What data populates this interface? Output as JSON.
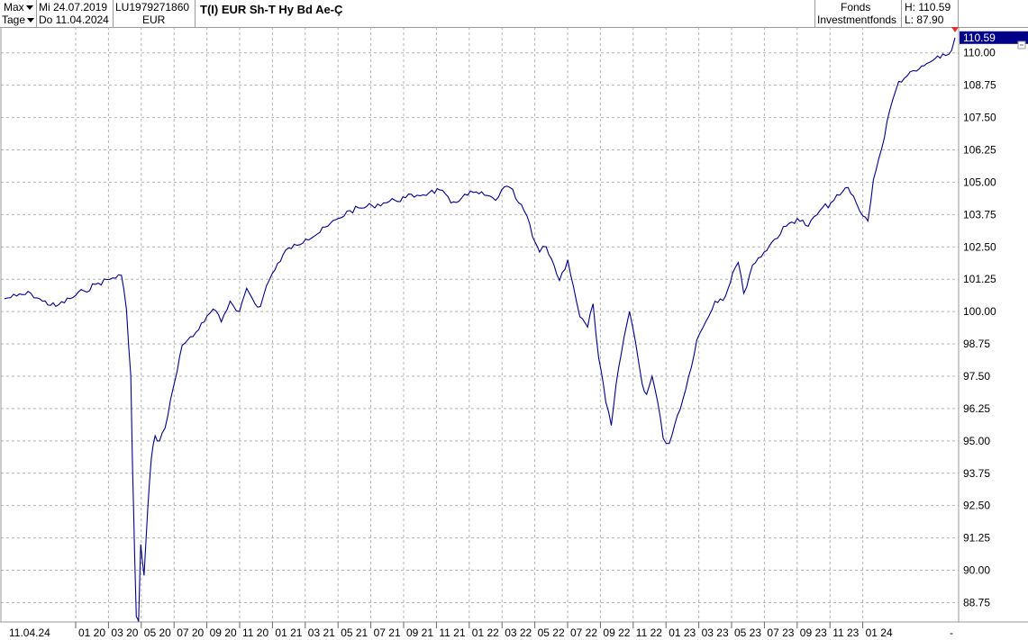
{
  "header": {
    "period_select": "Max",
    "interval_select": "Tage",
    "date_from": "Mi 24.07.2019",
    "date_to": "Do 11.04.2024",
    "isin": "LU1979271860",
    "currency": "EUR",
    "title": "T(I) EUR Sh-T Hy Bd Ae-Ç",
    "type_line1": "Fonds",
    "type_line2": "Investmentfonds",
    "high": "H: 110.59",
    "low": "L: 87.90"
  },
  "colors": {
    "line": "#00008b",
    "grid": "#b4b4b4",
    "last_price_bg": "#00008b",
    "last_marker": "#e03030"
  },
  "chart_data": {
    "type": "line",
    "title": "T(I) EUR Sh-T Hy Bd Ae-Ç",
    "ylim": [
      88.0,
      111.0
    ],
    "y_ticks": [
      "110.00",
      "108.75",
      "107.50",
      "106.25",
      "105.00",
      "103.75",
      "102.50",
      "101.25",
      "100.00",
      "98.75",
      "97.50",
      "96.25",
      "95.00",
      "93.75",
      "92.50",
      "91.25",
      "90.00",
      "88.75"
    ],
    "x_labels": [
      "11.04.24",
      "01 20",
      "03 20",
      "05 20",
      "07 20",
      "09 20",
      "11 20",
      "01 21",
      "03 21",
      "05 21",
      "07 21",
      "09 21",
      "11 21",
      "01 22",
      "03 22",
      "05 22",
      "07 22",
      "09 22",
      "11 22",
      "01 23",
      "03 23",
      "05 23",
      "07 23",
      "09 23",
      "11 23",
      "01 24",
      "-"
    ],
    "last_value": "110.59",
    "grid": true,
    "series": [
      {
        "x": [
          "2019-07-24",
          "2019-08-15",
          "2019-09-10",
          "2019-10-01",
          "2019-10-25",
          "2019-11-20",
          "2019-12-15",
          "2020-01-10",
          "2020-02-05",
          "2020-02-21",
          "2020-03-01",
          "2020-03-09",
          "2020-03-12",
          "2020-03-16",
          "2020-03-19",
          "2020-03-23",
          "2020-03-27",
          "2020-04-02",
          "2020-04-09",
          "2020-04-15",
          "2020-04-22",
          "2020-04-30",
          "2020-05-10",
          "2020-05-20",
          "2020-06-01",
          "2020-06-10",
          "2020-06-20",
          "2020-07-05",
          "2020-07-20",
          "2020-08-05",
          "2020-08-20",
          "2020-09-05",
          "2020-09-22",
          "2020-10-05",
          "2020-10-20",
          "2020-10-30",
          "2020-11-10",
          "2020-11-25",
          "2020-12-10",
          "2020-12-30",
          "2021-01-20",
          "2021-02-10",
          "2021-03-01",
          "2021-03-20",
          "2021-04-10",
          "2021-05-01",
          "2021-05-20",
          "2021-06-10",
          "2021-07-01",
          "2021-07-20",
          "2021-08-10",
          "2021-09-01",
          "2021-09-20",
          "2021-10-10",
          "2021-10-30",
          "2021-11-20",
          "2021-12-10",
          "2021-12-30",
          "2022-01-10",
          "2022-01-25",
          "2022-02-10",
          "2022-02-25",
          "2022-03-07",
          "2022-03-20",
          "2022-04-01",
          "2022-04-15",
          "2022-04-25",
          "2022-05-10",
          "2022-05-20",
          "2022-06-01",
          "2022-06-15",
          "2022-06-25",
          "2022-07-05",
          "2022-07-18",
          "2022-07-28",
          "2022-08-10",
          "2022-08-20",
          "2022-08-30",
          "2022-09-10",
          "2022-09-22",
          "2022-09-30",
          "2022-10-10",
          "2022-10-20",
          "2022-10-30",
          "2022-11-10",
          "2022-11-25",
          "2022-12-10",
          "2022-12-30",
          "2023-01-15",
          "2023-02-01",
          "2023-02-20",
          "2023-03-05",
          "2023-03-15",
          "2023-03-25",
          "2023-04-10",
          "2023-05-01",
          "2023-05-20",
          "2023-06-10",
          "2023-06-30",
          "2023-07-20",
          "2023-08-10",
          "2023-08-30",
          "2023-09-15",
          "2023-09-30",
          "2023-10-15",
          "2023-10-27",
          "2023-11-05",
          "2023-11-15",
          "2023-11-30",
          "2023-12-15",
          "2023-12-31",
          "2024-01-15",
          "2024-02-01",
          "2024-02-15",
          "2024-03-01",
          "2024-03-15",
          "2024-03-25",
          "2024-04-05",
          "2024-04-11"
        ],
        "y": [
          100.5,
          100.6,
          100.7,
          100.4,
          100.2,
          100.5,
          100.8,
          101.1,
          101.3,
          101.4,
          100.1,
          97.5,
          94.0,
          90.5,
          88.2,
          88.0,
          91.0,
          89.8,
          92.5,
          94.3,
          95.2,
          95.0,
          95.5,
          96.6,
          97.7,
          98.7,
          98.9,
          99.2,
          99.6,
          100.1,
          99.6,
          100.4,
          100.0,
          100.9,
          100.3,
          100.2,
          101.0,
          101.6,
          102.2,
          102.6,
          102.8,
          103.0,
          103.3,
          103.6,
          103.9,
          104.0,
          104.1,
          104.2,
          104.3,
          104.4,
          104.5,
          104.6,
          104.7,
          104.2,
          104.4,
          104.6,
          104.5,
          104.3,
          104.7,
          104.8,
          104.2,
          103.7,
          102.9,
          102.3,
          102.5,
          101.8,
          101.2,
          102.0,
          101.0,
          99.8,
          99.4,
          100.3,
          98.2,
          96.5,
          95.6,
          97.8,
          99.0,
          100.0,
          98.8,
          97.2,
          96.8,
          97.5,
          96.5,
          95.1,
          94.9,
          96.0,
          97.0,
          98.9,
          99.6,
          100.4,
          100.6,
          101.5,
          101.9,
          100.7,
          101.8,
          102.3,
          102.8,
          103.3,
          103.6,
          103.3,
          103.9,
          104.2,
          104.5,
          104.8,
          104.2,
          103.7,
          103.5,
          105.1,
          106.3,
          107.8,
          108.9,
          109.1,
          109.3,
          109.5,
          109.7,
          109.8,
          109.9,
          110.1,
          110.59
        ]
      }
    ]
  }
}
